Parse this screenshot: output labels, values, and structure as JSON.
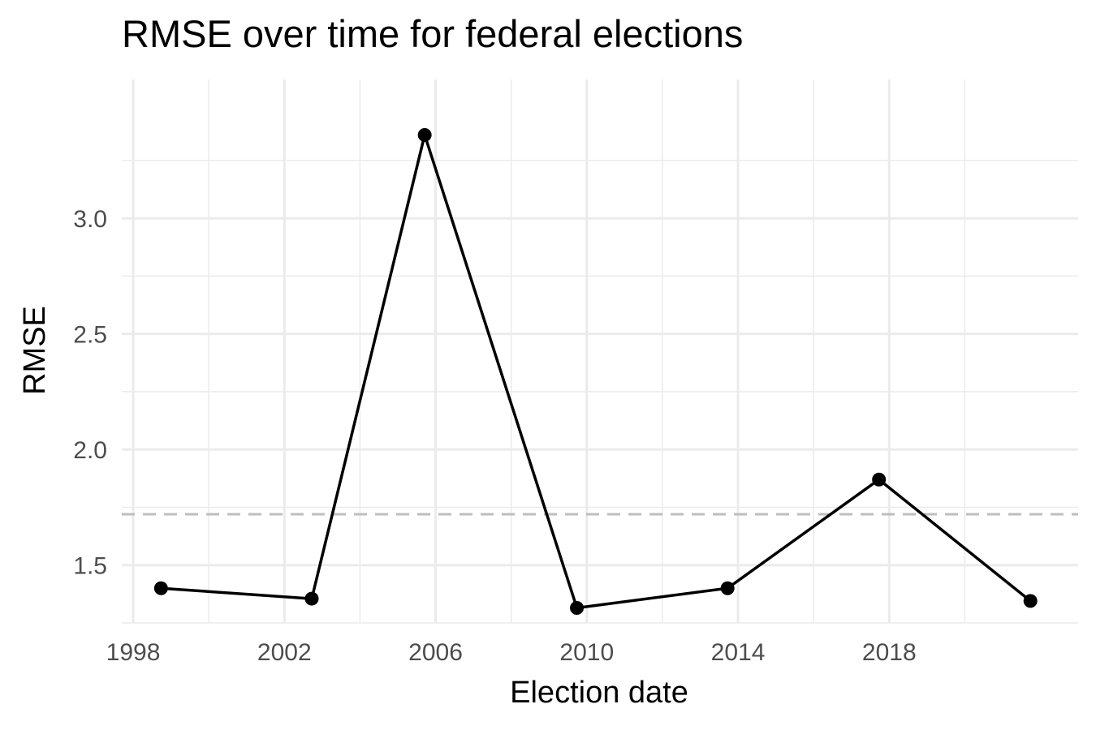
{
  "chart_data": {
    "type": "line",
    "title": "RMSE over time for federal elections",
    "xlabel": "Election date",
    "ylabel": "RMSE",
    "x_ticks": [
      "1998",
      "2002",
      "2006",
      "2010",
      "2014",
      "2018"
    ],
    "y_ticks": [
      "1.5",
      "2.0",
      "2.5",
      "3.0"
    ],
    "xlim": [
      "1997-09-13",
      "2022-12-31"
    ],
    "ylim": [
      1.25,
      3.6
    ],
    "grid": true,
    "reference_line": {
      "value": 1.72,
      "style": "dashed"
    },
    "series": [
      {
        "points": [
          {
            "x": "1998-09-27",
            "y": 1.4
          },
          {
            "x": "2002-09-22",
            "y": 1.355
          },
          {
            "x": "2005-09-18",
            "y": 3.36
          },
          {
            "x": "2009-09-27",
            "y": 1.315
          },
          {
            "x": "2013-09-22",
            "y": 1.4
          },
          {
            "x": "2017-09-24",
            "y": 1.87
          },
          {
            "x": "2021-09-26",
            "y": 1.345
          }
        ]
      }
    ],
    "colors": {
      "line": "#000000",
      "points": "#000000",
      "grid": "#ebebeb",
      "reference_line": "#bebebe"
    }
  }
}
